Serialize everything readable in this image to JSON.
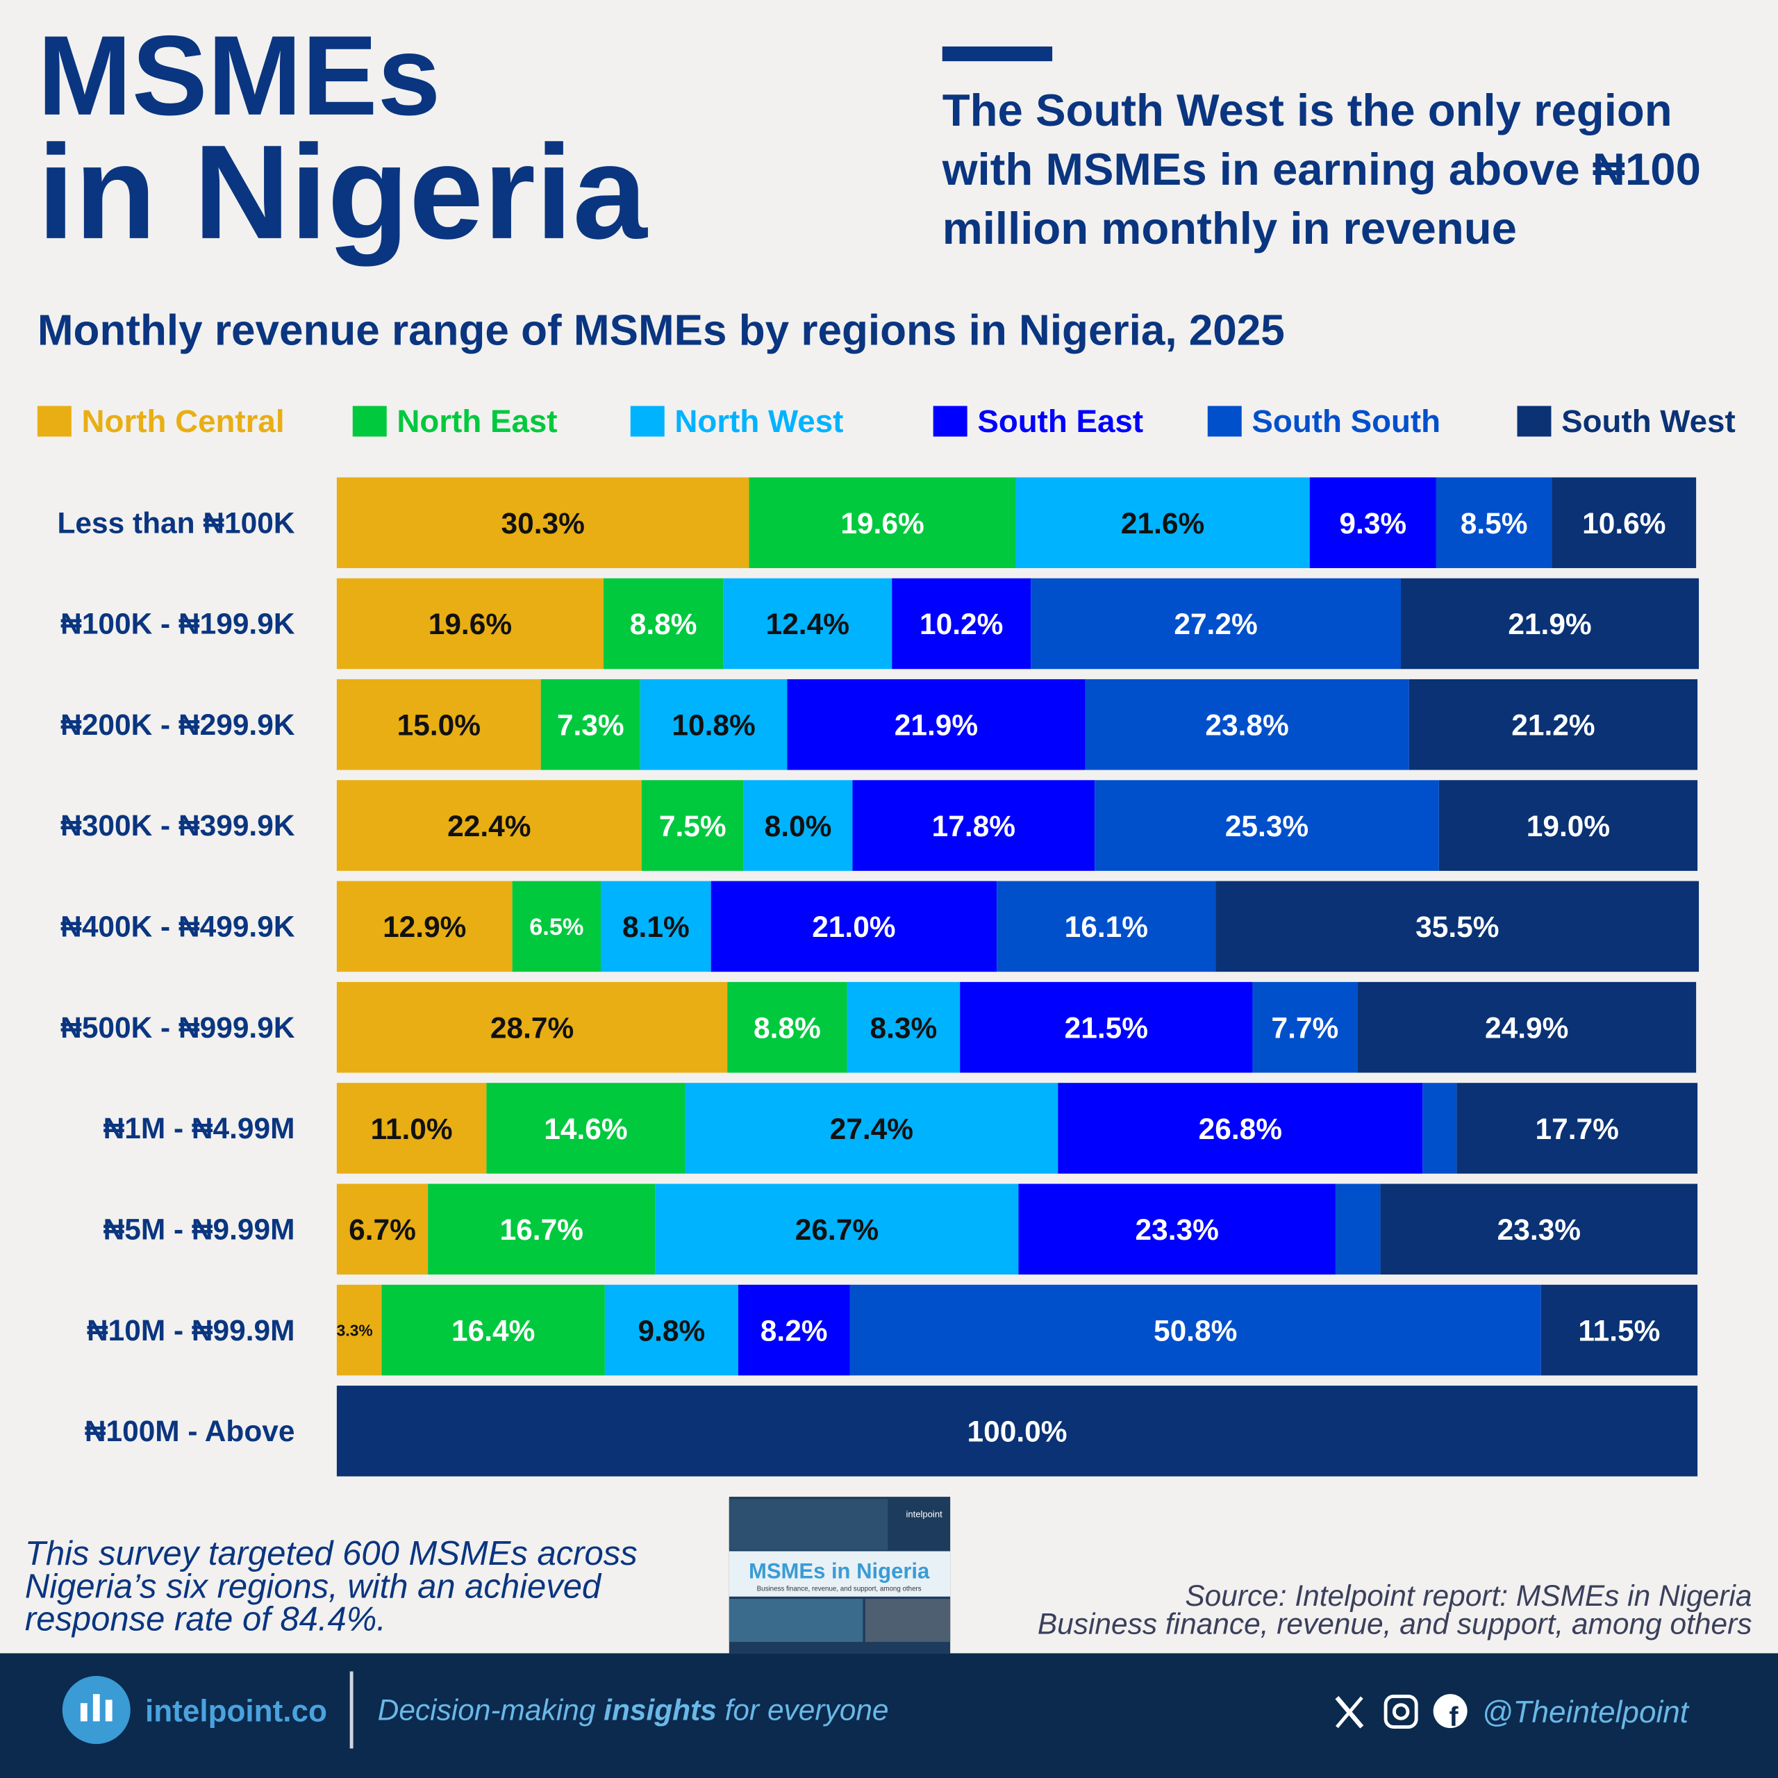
{
  "title": [
    "MSMEs",
    "in Nigeria"
  ],
  "headline": [
    "The South West is the only region",
    "with MSMEs in earning above ₦100",
    "million monthly in revenue"
  ],
  "chart_data": {
    "type": "stacked-bar-horizontal",
    "title": "Monthly revenue range of MSMEs by regions in Nigeria, 2025",
    "categories": [
      "Less than ₦100K",
      "₦100K - ₦199.9K",
      "₦200K - ₦299.9K",
      "₦300K - ₦399.9K",
      "₦400K - ₦499.9K",
      "₦500K - ₦999.9K",
      "₦1M - ₦4.99M",
      "₦5M - ₦9.99M",
      "₦10M - ₦99.9M",
      "₦100M - Above"
    ],
    "xlim": [
      0,
      100
    ],
    "series": [
      {
        "name": "North Central",
        "color": "#E8AE13",
        "values": [
          30.3,
          19.6,
          15.0,
          22.4,
          12.9,
          28.7,
          11.0,
          6.7,
          3.3,
          0
        ],
        "value_labels": [
          "30.3%",
          "19.6%",
          "15.0%",
          "22.4%",
          "12.9%",
          "28.7%",
          "11.0%",
          "6.7%",
          "3.3%",
          null
        ]
      },
      {
        "name": "North East",
        "color": "#00C93E",
        "values": [
          19.6,
          8.8,
          7.3,
          7.5,
          6.5,
          8.8,
          14.6,
          16.7,
          16.4,
          0
        ],
        "value_labels": [
          "19.6%",
          "8.8%",
          "7.3%",
          "7.5%",
          "6.5%",
          "8.8%",
          "14.6%",
          "16.7%",
          "16.4%",
          null
        ]
      },
      {
        "name": "North West",
        "color": "#00B3FF",
        "values": [
          21.6,
          12.4,
          10.8,
          8.0,
          8.1,
          8.3,
          27.4,
          26.7,
          9.8,
          0
        ],
        "value_labels": [
          "21.6%",
          "12.4%",
          "10.8%",
          "8.0%",
          "8.1%",
          "8.3%",
          "27.4%",
          "26.7%",
          "9.8%",
          null
        ]
      },
      {
        "name": "South East",
        "color": "#0000FF",
        "values": [
          9.3,
          10.2,
          21.9,
          17.8,
          21.0,
          21.5,
          26.8,
          23.3,
          8.2,
          0
        ],
        "value_labels": [
          "9.3%",
          "10.2%",
          "21.9%",
          "17.8%",
          "21.0%",
          "21.5%",
          "26.8%",
          "23.3%",
          "8.2%",
          null
        ]
      },
      {
        "name": "South South",
        "color": "#0050CC",
        "values": [
          8.5,
          27.2,
          23.8,
          25.3,
          16.1,
          7.7,
          2.5,
          3.3,
          50.8,
          0
        ],
        "value_labels": [
          "8.5%",
          "27.2%",
          "23.8%",
          "25.3%",
          "16.1%",
          "7.7%",
          null,
          null,
          "50.8%",
          null
        ]
      },
      {
        "name": "South West",
        "color": "#0A3275",
        "values": [
          10.6,
          21.9,
          21.2,
          19.0,
          35.5,
          24.9,
          17.7,
          23.3,
          11.5,
          100.0
        ],
        "value_labels": [
          "10.6%",
          "21.9%",
          "21.2%",
          "19.0%",
          "35.5%",
          "24.9%",
          "17.7%",
          "23.3%",
          "11.5%",
          "100.0%"
        ]
      }
    ]
  },
  "note": [
    "This survey targeted 600 MSMEs across",
    "Nigeria’s six regions, with an achieved",
    "response rate of 84.4%."
  ],
  "thumbnail": {
    "title": "MSMEs in Nigeria",
    "subtitle": "Business finance, revenue, and support, among others",
    "brand": "intelpoint"
  },
  "source": [
    "Source: Intelpoint report: MSMEs in Nigeria",
    "Business finance, revenue, and support, among others"
  ],
  "footer": {
    "brand": "intelpoint.co",
    "tagline": [
      "Decision-making ",
      "insights",
      " for everyone"
    ],
    "handle": "@Theintelpoint"
  }
}
